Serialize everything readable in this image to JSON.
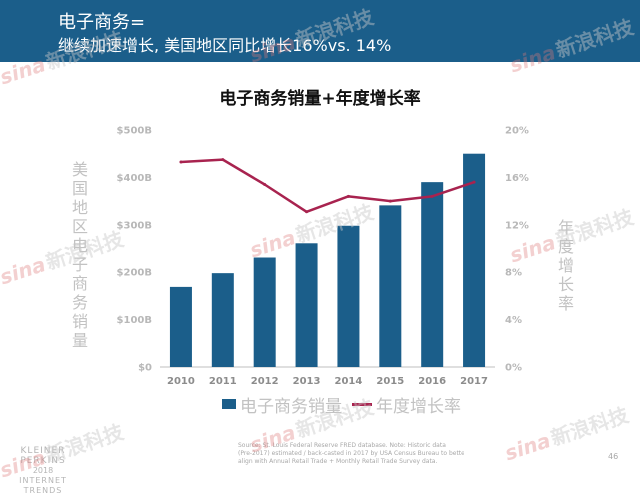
{
  "header": {
    "line1": "电子商务=",
    "line2": "继续加速增长, 美国地区同比增长16%vs. 14%",
    "color": "#1b5e8a"
  },
  "chart_data": {
    "type": "bar",
    "title": "电子商务销量+年度增长率",
    "categories": [
      "2010",
      "2011",
      "2012",
      "2013",
      "2014",
      "2015",
      "2016",
      "2017"
    ],
    "y_left_label": "美国地区电子商务销量",
    "y_right_label": "年度增长率",
    "y_left_ticks": [
      "$0",
      "$100B",
      "$200B",
      "$300B",
      "$400B",
      "$500B"
    ],
    "y_right_ticks": [
      "0%",
      "4%",
      "8%",
      "12%",
      "16%",
      "20%"
    ],
    "ylim_left": [
      0,
      500
    ],
    "ylim_right": [
      0,
      20
    ],
    "series": [
      {
        "name": "电子商务销量",
        "type": "bar",
        "axis": "left",
        "color": "#1b5e8a",
        "values": [
          169,
          198,
          231,
          261,
          298,
          341,
          390,
          450
        ]
      },
      {
        "name": "年度增长率",
        "type": "line",
        "axis": "right",
        "color": "#a8234f",
        "values": [
          17.3,
          17.5,
          15.4,
          13.1,
          14.4,
          14.0,
          14.4,
          15.6
        ]
      }
    ],
    "grid": false,
    "legend": "bottom"
  },
  "footer": {
    "logo_lines": [
      "KLEINER PERKINS",
      "2018",
      "INTERNET TRENDS"
    ],
    "source_lines": [
      "Source: St. Louis Federal Reserve FRED database. Note: Historic data",
      "(Pre-2017) estimated / back-casted in 2017 by USA Census Bureau to better",
      "align with Annual Retail Trade + Monthly Retail Trade Survey data."
    ],
    "page_number": "46"
  },
  "watermark": {
    "brand": "sina",
    "text": "新浪科技"
  }
}
